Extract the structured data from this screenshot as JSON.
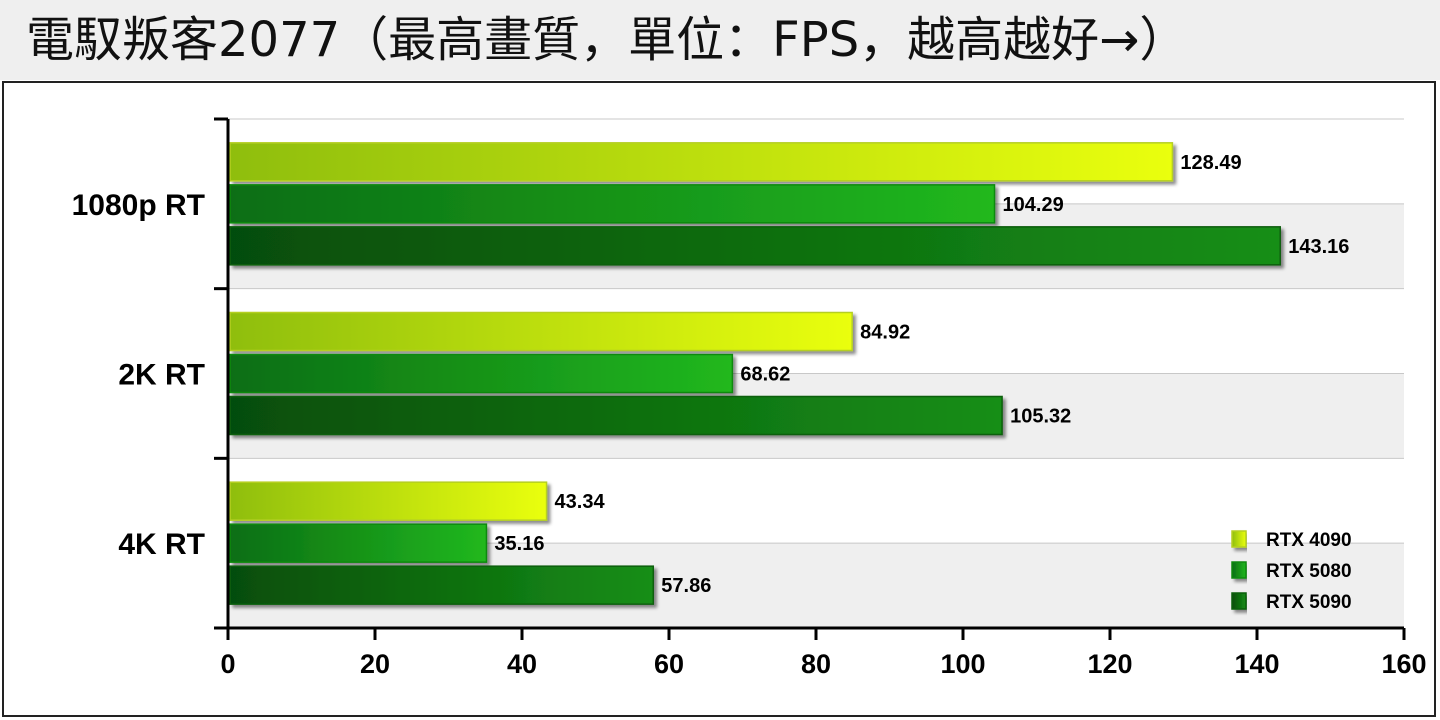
{
  "title": "電馭叛客2077（最高畫質，單位：FPS，越高越好→）",
  "chart_data": {
    "type": "bar",
    "orientation": "horizontal",
    "categories": [
      "1080p RT",
      "2K RT",
      "4K RT"
    ],
    "series": [
      {
        "name": "RTX 4090",
        "values": [
          128.49,
          84.92,
          43.34
        ],
        "color": "#d4f000"
      },
      {
        "name": "RTX 5080",
        "values": [
          104.29,
          68.62,
          35.16
        ],
        "color": "#1aa81a"
      },
      {
        "name": "RTX 5090",
        "values": [
          143.16,
          105.32,
          57.86
        ],
        "color": "#127a12"
      }
    ],
    "xlim": [
      0,
      160
    ],
    "xticks": [
      0,
      20,
      40,
      60,
      80,
      100,
      120,
      140,
      160
    ],
    "grid": true,
    "legend_position": "bottom-right"
  }
}
